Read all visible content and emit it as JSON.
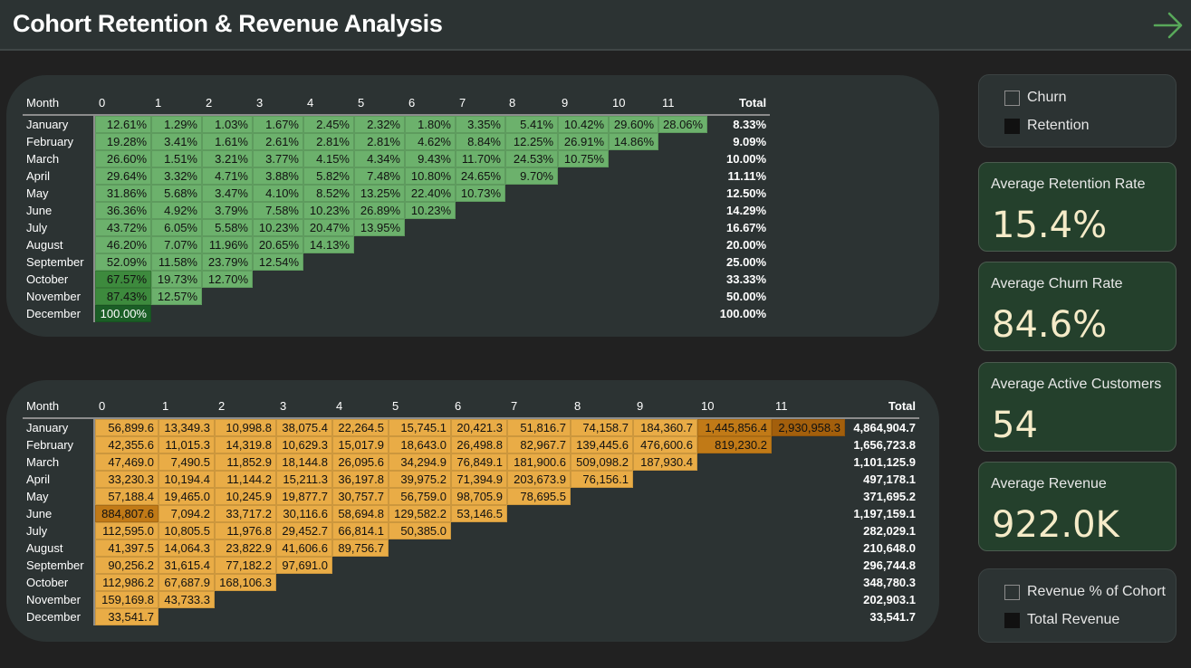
{
  "header": {
    "title": "Cohort Retention & Revenue Analysis",
    "nav_icon": "arrow-right-icon"
  },
  "retention": {
    "month_header": "Month",
    "columns": [
      "0",
      "1",
      "2",
      "3",
      "4",
      "5",
      "6",
      "7",
      "8",
      "9",
      "10",
      "11"
    ],
    "total_header": "Total",
    "rows": [
      {
        "month": "January",
        "values": [
          "12.61%",
          "1.29%",
          "1.03%",
          "1.67%",
          "2.45%",
          "2.32%",
          "1.80%",
          "3.35%",
          "5.41%",
          "10.42%",
          "29.60%",
          "28.06%"
        ],
        "total": "8.33%"
      },
      {
        "month": "February",
        "values": [
          "19.28%",
          "3.41%",
          "1.61%",
          "2.61%",
          "2.81%",
          "2.81%",
          "4.62%",
          "8.84%",
          "12.25%",
          "26.91%",
          "14.86%"
        ],
        "total": "9.09%"
      },
      {
        "month": "March",
        "values": [
          "26.60%",
          "1.51%",
          "3.21%",
          "3.77%",
          "4.15%",
          "4.34%",
          "9.43%",
          "11.70%",
          "24.53%",
          "10.75%"
        ],
        "total": "10.00%"
      },
      {
        "month": "April",
        "values": [
          "29.64%",
          "3.32%",
          "4.71%",
          "3.88%",
          "5.82%",
          "7.48%",
          "10.80%",
          "24.65%",
          "9.70%"
        ],
        "total": "11.11%"
      },
      {
        "month": "May",
        "values": [
          "31.86%",
          "5.68%",
          "3.47%",
          "4.10%",
          "8.52%",
          "13.25%",
          "22.40%",
          "10.73%"
        ],
        "total": "12.50%"
      },
      {
        "month": "June",
        "values": [
          "36.36%",
          "4.92%",
          "3.79%",
          "7.58%",
          "10.23%",
          "26.89%",
          "10.23%"
        ],
        "total": "14.29%"
      },
      {
        "month": "July",
        "values": [
          "43.72%",
          "6.05%",
          "5.58%",
          "10.23%",
          "20.47%",
          "13.95%"
        ],
        "total": "16.67%"
      },
      {
        "month": "August",
        "values": [
          "46.20%",
          "7.07%",
          "11.96%",
          "20.65%",
          "14.13%"
        ],
        "total": "20.00%"
      },
      {
        "month": "September",
        "values": [
          "52.09%",
          "11.58%",
          "23.79%",
          "12.54%"
        ],
        "total": "25.00%"
      },
      {
        "month": "October",
        "values": [
          "67.57%",
          "19.73%",
          "12.70%"
        ],
        "total": "33.33%"
      },
      {
        "month": "November",
        "values": [
          "87.43%",
          "12.57%"
        ],
        "total": "50.00%"
      },
      {
        "month": "December",
        "values": [
          "100.00%"
        ],
        "total": "100.00%"
      }
    ],
    "colors": {
      "base": "#6cb16c",
      "dark": "#3d8a3d",
      "darker": "#1b5e26"
    }
  },
  "revenue": {
    "month_header": "Month",
    "columns": [
      "0",
      "1",
      "2",
      "3",
      "4",
      "5",
      "6",
      "7",
      "8",
      "9",
      "10",
      "11"
    ],
    "total_header": "Total",
    "rows": [
      {
        "month": "January",
        "values": [
          "56,899.6",
          "13,349.3",
          "10,998.8",
          "38,075.4",
          "22,264.5",
          "15,745.1",
          "20,421.3",
          "51,816.7",
          "74,158.7",
          "184,360.7",
          "1,445,856.4",
          "2,930,958.3"
        ],
        "total": "4,864,904.7"
      },
      {
        "month": "February",
        "values": [
          "42,355.6",
          "11,015.3",
          "14,319.8",
          "10,629.3",
          "15,017.9",
          "18,643.0",
          "26,498.8",
          "82,967.7",
          "139,445.6",
          "476,600.6",
          "819,230.2"
        ],
        "total": "1,656,723.8"
      },
      {
        "month": "March",
        "values": [
          "47,469.0",
          "7,490.5",
          "11,852.9",
          "18,144.8",
          "26,095.6",
          "34,294.9",
          "76,849.1",
          "181,900.6",
          "509,098.2",
          "187,930.4"
        ],
        "total": "1,101,125.9"
      },
      {
        "month": "April",
        "values": [
          "33,230.3",
          "10,194.4",
          "11,144.2",
          "15,211.3",
          "36,197.8",
          "39,975.2",
          "71,394.9",
          "203,673.9",
          "76,156.1"
        ],
        "total": "497,178.1"
      },
      {
        "month": "May",
        "values": [
          "57,188.4",
          "19,465.0",
          "10,245.9",
          "19,877.7",
          "30,757.7",
          "56,759.0",
          "98,705.9",
          "78,695.5"
        ],
        "total": "371,695.2"
      },
      {
        "month": "June",
        "values": [
          "884,807.6",
          "7,094.2",
          "33,717.2",
          "30,116.6",
          "58,694.8",
          "129,582.2",
          "53,146.5"
        ],
        "total": "1,197,159.1"
      },
      {
        "month": "July",
        "values": [
          "112,595.0",
          "10,805.5",
          "11,976.8",
          "29,452.7",
          "66,814.1",
          "50,385.0"
        ],
        "total": "282,029.1"
      },
      {
        "month": "August",
        "values": [
          "41,397.5",
          "14,064.3",
          "23,822.9",
          "41,606.6",
          "89,756.7"
        ],
        "total": "210,648.0"
      },
      {
        "month": "September",
        "values": [
          "90,256.2",
          "31,615.4",
          "77,182.2",
          "97,691.0"
        ],
        "total": "296,744.8"
      },
      {
        "month": "October",
        "values": [
          "112,986.2",
          "67,687.9",
          "168,106.3"
        ],
        "total": "348,780.3"
      },
      {
        "month": "November",
        "values": [
          "159,169.8",
          "43,733.3"
        ],
        "total": "202,903.1"
      },
      {
        "month": "December",
        "values": [
          "33,541.7"
        ],
        "total": "33,541.7"
      }
    ],
    "colors": {
      "base": "#e9ac46",
      "high": "#c17a17",
      "highest": "#a35f0c"
    }
  },
  "slicer_metric": {
    "options": [
      "Churn",
      "Retention"
    ],
    "selected": "Retention"
  },
  "kpis": {
    "retention": {
      "label": "Average Retention Rate",
      "value": "15.4%"
    },
    "churn": {
      "label": "Average Churn Rate",
      "value": "84.6%"
    },
    "customers": {
      "label": "Average Active Customers",
      "value": "54"
    },
    "revenue": {
      "label": "Average Revenue",
      "value": "922.0K"
    }
  },
  "slicer_revenue": {
    "options": [
      "Revenue % of Cohort",
      "Total Revenue"
    ],
    "selected": "Total Revenue"
  }
}
